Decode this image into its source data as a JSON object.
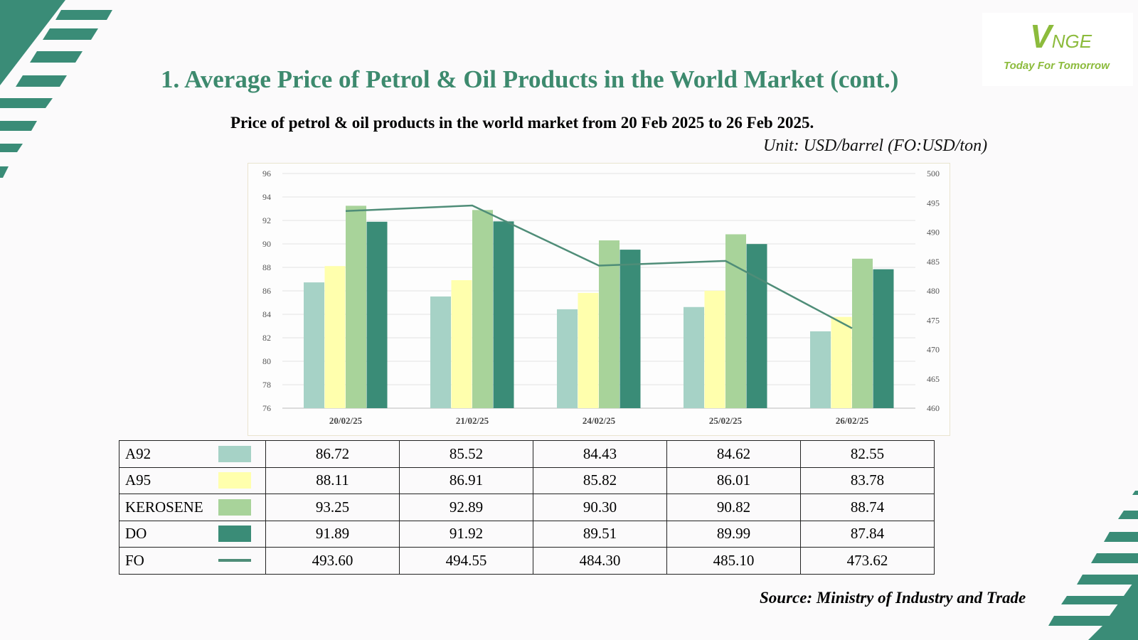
{
  "logo": {
    "mark_v": "V",
    "mark_rest": "NGE",
    "tagline": "Today For Tomorrow"
  },
  "slide": {
    "title": "1. Average Price of Petrol & Oil Products in the World Market (cont.)",
    "subtitle": "Price of petrol & oil products in the world market from 20 Feb 2025 to 26 Feb 2025.",
    "unit": "Unit: USD/barrel (FO:USD/ton)",
    "source": "Source: Ministry of Industry and Trade"
  },
  "chart_data": {
    "type": "bar",
    "categories": [
      "20/02/25",
      "21/02/25",
      "24/02/25",
      "25/02/25",
      "26/02/25"
    ],
    "series": [
      {
        "name": "A92",
        "kind": "bar",
        "axis": "left",
        "color": "#a6d2c6",
        "values": [
          86.72,
          85.52,
          84.43,
          84.62,
          82.55
        ]
      },
      {
        "name": "A95",
        "kind": "bar",
        "axis": "left",
        "color": "#ffffad",
        "values": [
          88.11,
          86.91,
          85.82,
          86.01,
          83.78
        ]
      },
      {
        "name": "KEROSENE",
        "kind": "bar",
        "axis": "left",
        "color": "#a8d39a",
        "values": [
          93.25,
          92.89,
          90.3,
          90.82,
          88.74
        ]
      },
      {
        "name": "DO",
        "kind": "bar",
        "axis": "left",
        "color": "#3a8c77",
        "values": [
          91.89,
          91.92,
          89.51,
          89.99,
          87.84
        ]
      },
      {
        "name": "FO",
        "kind": "line",
        "axis": "right",
        "color": "#4f8d78",
        "values": [
          493.6,
          494.55,
          484.3,
          485.1,
          473.62
        ]
      }
    ],
    "ylim": [
      76,
      96
    ],
    "y_ticks": [
      "96",
      "94",
      "92",
      "90",
      "88",
      "86",
      "84",
      "82",
      "80",
      "78",
      "76"
    ],
    "y2lim": [
      460,
      500
    ],
    "y2_ticks": [
      "500",
      "495",
      "490",
      "485",
      "480",
      "475",
      "470",
      "465",
      "460"
    ],
    "grid": true,
    "legend": "data-table-below"
  },
  "table": {
    "rows": [
      {
        "label": "A92",
        "values": [
          "86.72",
          "85.52",
          "84.43",
          "84.62",
          "82.55"
        ]
      },
      {
        "label": "A95",
        "values": [
          "88.11",
          "86.91",
          "85.82",
          "86.01",
          "83.78"
        ]
      },
      {
        "label": "KEROSENE",
        "values": [
          "93.25",
          "92.89",
          "90.30",
          "90.82",
          "88.74"
        ]
      },
      {
        "label": "DO",
        "values": [
          "91.89",
          "91.92",
          "89.51",
          "89.99",
          "87.84"
        ]
      },
      {
        "label": "FO",
        "values": [
          "493.60",
          "494.55",
          "484.30",
          "485.10",
          "473.62"
        ]
      }
    ]
  }
}
